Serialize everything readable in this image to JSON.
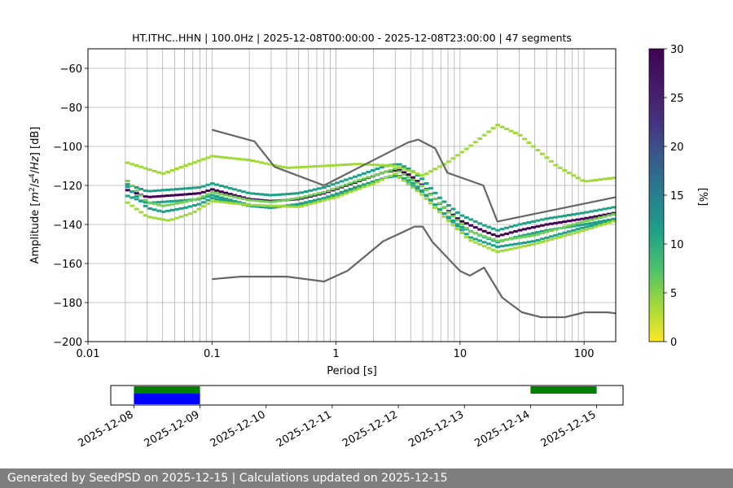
{
  "title": "HT.ITHC..HHN | 100.0Hz | 2025-12-08T00:00:00 - 2025-12-08T23:00:00 | 47 segments",
  "footer": "Generated by SeedPSD on 2025-12-15 | Calculations updated on 2025-12-15",
  "chart_data": [
    {
      "type": "heatmap",
      "title": "HT.ITHC..HHN | 100.0Hz | 2025-12-08T00:00:00 - 2025-12-08T23:00:00 | 47 segments",
      "xlabel": "Period [s]",
      "ylabel": "Amplitude [m²/s⁴/Hz] [dB]",
      "x_scale": "log",
      "xlim": [
        0.01,
        180
      ],
      "ylim": [
        -200,
        -50
      ],
      "x_ticks": [
        0.01,
        0.1,
        1,
        10,
        100
      ],
      "x_tick_labels": [
        "0.01",
        "0.1",
        "1",
        "10",
        "100"
      ],
      "y_ticks": [
        -200,
        -180,
        -160,
        -140,
        -120,
        -100,
        -80,
        -60
      ],
      "y_tick_labels": [
        "−200",
        "−180",
        "−160",
        "−140",
        "−120",
        "−100",
        "−80",
        "−60"
      ],
      "grid": true,
      "colorbar": {
        "label": "[%]",
        "range": [
          0,
          30
        ],
        "ticks": [
          0,
          5,
          10,
          15,
          20,
          25,
          30
        ],
        "tick_labels": [
          "0",
          "5",
          "10",
          "15",
          "20",
          "25",
          "30"
        ],
        "colormap": "viridis_r"
      },
      "period_range": [
        0.02,
        180
      ],
      "pdf_bands": [
        {
          "name": "main",
          "peak_percent": 30,
          "points": [
            [
              0.02,
              -122
            ],
            [
              0.03,
              -126
            ],
            [
              0.05,
              -125
            ],
            [
              0.08,
              -124
            ],
            [
              0.1,
              -122
            ],
            [
              0.2,
              -127
            ],
            [
              0.3,
              -128
            ],
            [
              0.5,
              -127
            ],
            [
              0.8,
              -124
            ],
            [
              1.5,
              -118
            ],
            [
              2.5,
              -113
            ],
            [
              3.2,
              -112
            ],
            [
              4,
              -115
            ],
            [
              5,
              -120
            ],
            [
              7,
              -130
            ],
            [
              10,
              -138
            ],
            [
              15,
              -143
            ],
            [
              20,
              -146
            ],
            [
              30,
              -143
            ],
            [
              50,
              -140
            ],
            [
              100,
              -137
            ],
            [
              180,
              -134
            ]
          ]
        },
        {
          "name": "secondary",
          "peak_percent": 12,
          "points": [
            [
              0.02,
              -118
            ],
            [
              0.03,
              -130
            ],
            [
              0.04,
              -132
            ],
            [
              0.06,
              -130
            ],
            [
              0.08,
              -128
            ],
            [
              0.1,
              -125
            ],
            [
              0.2,
              -129
            ],
            [
              0.3,
              -130
            ],
            [
              0.5,
              -128
            ],
            [
              0.8,
              -125
            ],
            [
              1.5,
              -119
            ],
            [
              3,
              -113
            ],
            [
              5,
              -122
            ],
            [
              8,
              -135
            ],
            [
              12,
              -145
            ],
            [
              20,
              -150
            ],
            [
              40,
              -147
            ],
            [
              100,
              -140
            ],
            [
              180,
              -136
            ]
          ]
        },
        {
          "name": "upper",
          "peak_percent": 4,
          "points": [
            [
              0.02,
              -108
            ],
            [
              0.04,
              -114
            ],
            [
              0.1,
              -105
            ],
            [
              0.2,
              -107
            ],
            [
              0.4,
              -111
            ],
            [
              0.8,
              -110
            ],
            [
              1.5,
              -109
            ],
            [
              3,
              -110
            ],
            [
              5,
              -115
            ],
            [
              8,
              -108
            ],
            [
              12,
              -100
            ],
            [
              20,
              -89
            ],
            [
              30,
              -94
            ],
            [
              60,
              -110
            ],
            [
              100,
              -118
            ],
            [
              180,
              -116
            ]
          ]
        },
        {
          "name": "lower",
          "peak_percent": 5,
          "points": [
            [
              0.02,
              -128
            ],
            [
              0.03,
              -136
            ],
            [
              0.045,
              -138
            ],
            [
              0.07,
              -134
            ],
            [
              0.1,
              -128
            ],
            [
              0.2,
              -130
            ],
            [
              0.5,
              -131
            ],
            [
              1,
              -126
            ],
            [
              2,
              -119
            ],
            [
              3,
              -114
            ],
            [
              5,
              -125
            ],
            [
              8,
              -138
            ],
            [
              12,
              -148
            ],
            [
              20,
              -154
            ],
            [
              40,
              -150
            ],
            [
              100,
              -143
            ],
            [
              180,
              -138
            ]
          ]
        }
      ],
      "noise_models": [
        {
          "name": "upper",
          "points": [
            [
              0.1,
              -91.5
            ],
            [
              0.22,
              -97.4
            ],
            [
              0.32,
              -110.5
            ],
            [
              0.8,
              -120
            ],
            [
              3.8,
              -98
            ],
            [
              4.6,
              -96.5
            ],
            [
              6.3,
              -101
            ],
            [
              7.9,
              -113.5
            ],
            [
              15.4,
              -120
            ],
            [
              20,
              -138.5
            ],
            [
              354.8,
              -126
            ]
          ]
        },
        {
          "name": "lower",
          "points": [
            [
              0.1,
              -168
            ],
            [
              0.17,
              -166.7
            ],
            [
              0.4,
              -166.7
            ],
            [
              0.8,
              -169.2
            ],
            [
              1.24,
              -163.7
            ],
            [
              2.4,
              -148.6
            ],
            [
              4.3,
              -141.1
            ],
            [
              5,
              -141.1
            ],
            [
              6,
              -149
            ],
            [
              10,
              -163.8
            ],
            [
              12,
              -166.2
            ],
            [
              15.6,
              -162.1
            ],
            [
              21.9,
              -177.5
            ],
            [
              31.6,
              -185
            ],
            [
              45,
              -187.5
            ],
            [
              70,
              -187.5
            ],
            [
              101,
              -185
            ],
            [
              154,
              -185
            ],
            [
              180,
              -185.5
            ]
          ]
        }
      ]
    },
    {
      "type": "bar",
      "x_tick_labels": [
        "2025-12-08",
        "2025-12-09",
        "2025-12-10",
        "2025-12-11",
        "2025-12-12",
        "2025-12-13",
        "2025-12-14",
        "2025-12-15"
      ],
      "xlim": [
        "2025-12-07T15:36:00",
        "2025-12-15T09:36:00"
      ],
      "coverage": [
        {
          "color": "#008000",
          "row": "top",
          "start": "2025-12-08T00:00:00",
          "end": "2025-12-09T00:00:00"
        },
        {
          "color": "#0000ff",
          "row": "bottom",
          "start": "2025-12-08T00:00:00",
          "end": "2025-12-09T00:00:00"
        },
        {
          "color": "#008000",
          "row": "top",
          "start": "2025-12-14T00:00:00",
          "end": "2025-12-15T00:00:00"
        }
      ]
    }
  ]
}
